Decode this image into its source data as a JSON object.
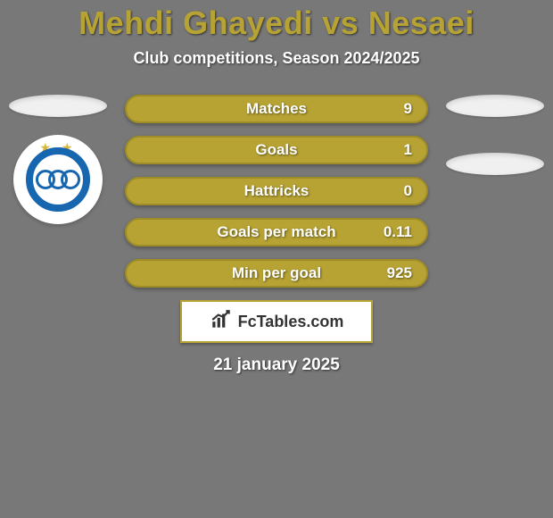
{
  "background_color": "#787878",
  "title": {
    "text": "Mehdi Ghayedi vs Nesaei",
    "color": "#b7a333",
    "fontsize": 36
  },
  "subtitle": {
    "text": "Club competitions, Season 2024/2025",
    "color": "#ffffff",
    "fontsize": 18
  },
  "stats": {
    "bar_color": "#b7a333",
    "bar_border": "#9e8c26",
    "text_color": "#ffffff",
    "items": [
      {
        "label": "Matches",
        "value": "9"
      },
      {
        "label": "Goals",
        "value": "1"
      },
      {
        "label": "Hattricks",
        "value": "0"
      },
      {
        "label": "Goals per match",
        "value": "0.11"
      },
      {
        "label": "Min per goal",
        "value": "925"
      }
    ]
  },
  "left_player": {
    "ellipse_color": "#f0f0f0",
    "badge_bg": "#ffffff",
    "badge_ring_color": "#1766b0",
    "star_color": "#d9b73a"
  },
  "right_player": {
    "ellipse_color": "#f0f0f0"
  },
  "footer": {
    "box_bg": "#ffffff",
    "box_border": "#b7a333",
    "icon_color": "#333333",
    "brand": "FcTables.com"
  },
  "date": {
    "text": "21 january 2025",
    "color": "#ffffff",
    "fontsize": 19
  }
}
